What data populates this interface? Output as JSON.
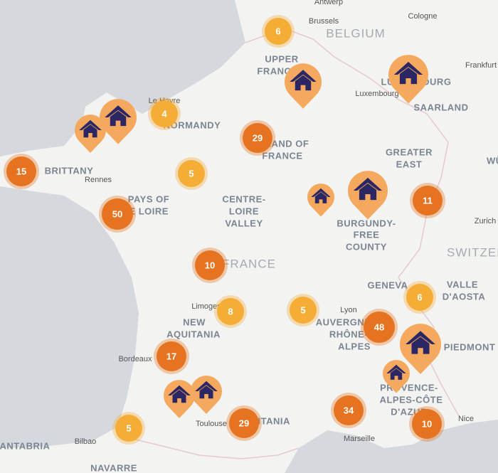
{
  "map": {
    "labels": [
      "Antwerp",
      "Brussels",
      "BELGIUM",
      "Cologne",
      "Frankfurt",
      "UPPER",
      "FRANCE",
      "LUXEMBOURG",
      "Luxembourg",
      "SAARLAND",
      "Le Havre",
      "NORMANDY",
      "ISLAND OF",
      "FRANCE",
      "GREATER",
      "EAST",
      "BRITTANY",
      "Rennes",
      "PAYS OF",
      "THE LOIRE",
      "CENTRE-",
      "LOIRE",
      "VALLEY",
      "BURGUNDY-",
      "FREE",
      "COUNTY",
      "Zurich",
      "SWITZERLAND",
      "FRANCE",
      "GENEVA",
      "VALLE",
      "D'AOSTA",
      "Limoges",
      "Lyon",
      "NEW",
      "AQUITANIA",
      "AUVERGNE-",
      "RHÔNE-",
      "ALPES",
      "PIEDMONT",
      "Bordeaux",
      "PROVENCE-",
      "ALPES-CÔTE",
      "D'AZUR",
      "Nice",
      "Toulouse",
      "OCCITANIA",
      "Marseille",
      "Bilbao",
      "CANTABRIA",
      "NAVARRE",
      "WÜRTTEMBERG"
    ],
    "clusters": [
      {
        "count": 6,
        "color": "#f5ad36"
      },
      {
        "count": 4,
        "color": "#f5ad36"
      },
      {
        "count": 29,
        "color": "#e5731f"
      },
      {
        "count": 15,
        "color": "#e5731f"
      },
      {
        "count": 5,
        "color": "#f5ad36"
      },
      {
        "count": 50,
        "color": "#e5731f"
      },
      {
        "count": 11,
        "color": "#e5731f"
      },
      {
        "count": 10,
        "color": "#e5731f"
      },
      {
        "count": 8,
        "color": "#f5ad36"
      },
      {
        "count": 5,
        "color": "#f5ad36"
      },
      {
        "count": 6,
        "color": "#f5ad36"
      },
      {
        "count": 48,
        "color": "#e5731f"
      },
      {
        "count": 17,
        "color": "#e5731f"
      },
      {
        "count": 34,
        "color": "#e5731f"
      },
      {
        "count": 29,
        "color": "#e5731f"
      },
      {
        "count": 5,
        "color": "#f5ad36"
      },
      {
        "count": 10,
        "color": "#e5731f"
      }
    ],
    "pin_color": "#f5a95e",
    "icon_color": "#2b2664"
  }
}
